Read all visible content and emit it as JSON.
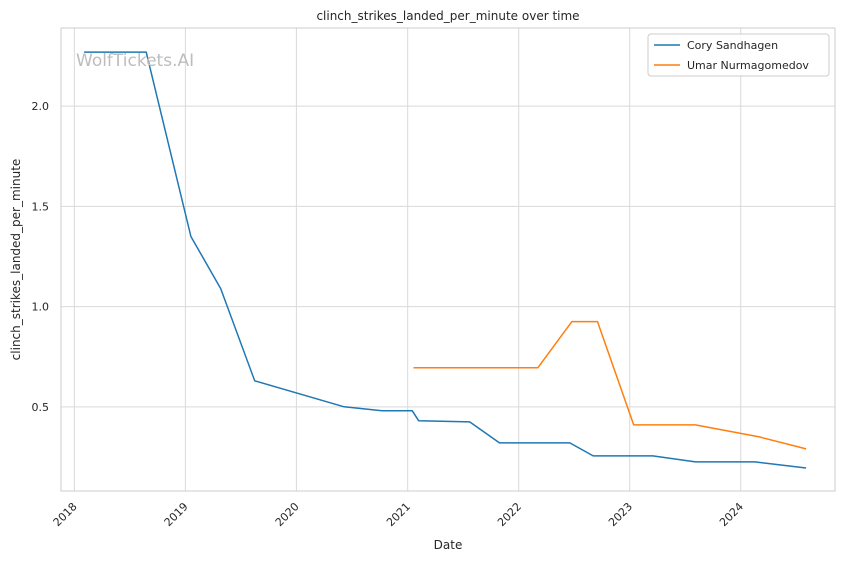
{
  "watermark": "WolfTickets.AI",
  "chart_data": {
    "type": "line",
    "title": "clinch_strikes_landed_per_minute over time",
    "xlabel": "Date",
    "ylabel": "clinch_strikes_landed_per_minute",
    "x_ticks": [
      "2018",
      "2019",
      "2020",
      "2021",
      "2022",
      "2023",
      "2024"
    ],
    "y_ticks": [
      "0.5",
      "1.0",
      "1.5",
      "2.0"
    ],
    "xlim": [
      "2017-11-18",
      "2024-11-06"
    ],
    "ylim": [
      0.08,
      2.39
    ],
    "grid": true,
    "legend_position": "top-right",
    "series": [
      {
        "name": "Cory Sandhagen",
        "color": "#1f77b4",
        "points": [
          [
            "2018-02-02",
            2.27
          ],
          [
            "2018-08-25",
            2.27
          ],
          [
            "2019-01-19",
            1.35
          ],
          [
            "2019-04-27",
            1.09
          ],
          [
            "2019-08-17",
            0.63
          ],
          [
            "2020-06-06",
            0.5
          ],
          [
            "2020-10-10",
            0.48
          ],
          [
            "2021-01-16",
            0.48
          ],
          [
            "2021-02-06",
            0.43
          ],
          [
            "2021-07-24",
            0.425
          ],
          [
            "2021-10-30",
            0.32
          ],
          [
            "2022-06-18",
            0.32
          ],
          [
            "2022-09-03",
            0.255
          ],
          [
            "2023-03-18",
            0.255
          ],
          [
            "2023-08-05",
            0.225
          ],
          [
            "2024-02-17",
            0.225
          ],
          [
            "2024-08-03",
            0.195
          ]
        ]
      },
      {
        "name": "Umar Nurmagomedov",
        "color": "#ff7f0e",
        "points": [
          [
            "2021-01-20",
            0.695
          ],
          [
            "2022-03-05",
            0.695
          ],
          [
            "2022-06-25",
            0.925
          ],
          [
            "2022-09-17",
            0.925
          ],
          [
            "2023-01-14",
            0.41
          ],
          [
            "2023-08-05",
            0.41
          ],
          [
            "2024-03-02",
            0.35
          ],
          [
            "2024-08-03",
            0.29
          ]
        ]
      }
    ]
  }
}
